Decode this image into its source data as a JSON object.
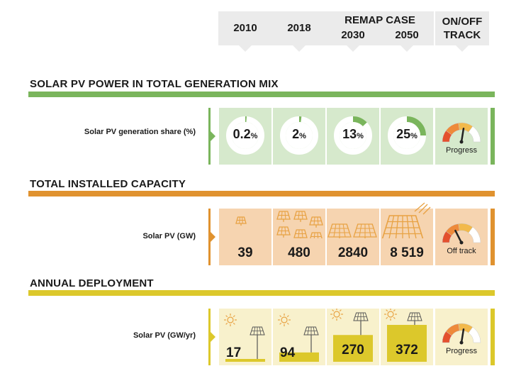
{
  "header": {
    "col_2010": "2010",
    "col_2018": "2018",
    "remap_case": "REMAP CASE",
    "col_2030": "2030",
    "col_2050": "2050",
    "track": "ON/OFF\nTRACK"
  },
  "colors": {
    "share": "#7ab55c",
    "share_cell": "#d6e9cc",
    "capacity": "#e0922f",
    "capacity_cell": "#f6d4b0",
    "deploy": "#dcc82b",
    "deploy_cell": "#f8f1cc",
    "icon_orange": "#e8a243",
    "icon_yellow": "#dcc82b"
  },
  "sections": {
    "share_title": "SOLAR PV POWER IN TOTAL GENERATION MIX",
    "capacity_title": "TOTAL INSTALLED CAPACITY",
    "deploy_title": "ANNUAL DEPLOYMENT"
  },
  "rows": {
    "share_label": "Solar PV generation share (%)",
    "capacity_label": "Solar PV (GW)",
    "deploy_label": "Solar PV (GW/yr)"
  },
  "chart_data": [
    {
      "type": "table",
      "title": "SOLAR PV POWER IN TOTAL GENERATION MIX",
      "row_label": "Solar PV generation share (%)",
      "categories": [
        "2010",
        "2018",
        "2030",
        "2050"
      ],
      "values": [
        0.2,
        2,
        13,
        25
      ],
      "display": [
        "0.2",
        "2",
        "13",
        "25"
      ],
      "unit": "%",
      "status": "Progress"
    },
    {
      "type": "table",
      "title": "TOTAL INSTALLED CAPACITY",
      "row_label": "Solar PV (GW)",
      "categories": [
        "2010",
        "2018",
        "2030",
        "2050"
      ],
      "values": [
        39,
        480,
        2840,
        8519
      ],
      "display": [
        "39",
        "480",
        "2840",
        "8 519"
      ],
      "status": "Off track"
    },
    {
      "type": "table",
      "title": "ANNUAL DEPLOYMENT",
      "row_label": "Solar PV (GW/yr)",
      "categories": [
        "2010",
        "2018",
        "2030",
        "2050"
      ],
      "values": [
        17,
        94,
        270,
        372
      ],
      "display": [
        "17",
        "94",
        "270",
        "372"
      ],
      "status": "Progress"
    }
  ],
  "gauges": {
    "share": {
      "label": "Progress",
      "level": 0.55
    },
    "capacity": {
      "label": "Off track",
      "level": 0.35
    },
    "deploy": {
      "label": "Progress",
      "level": 0.55
    }
  },
  "icons": {
    "share": "donut-chart-icon",
    "capacity": "solar-panel-icon",
    "deploy": "sun-solar-panel-icon",
    "gauge": "gauge-icon"
  }
}
